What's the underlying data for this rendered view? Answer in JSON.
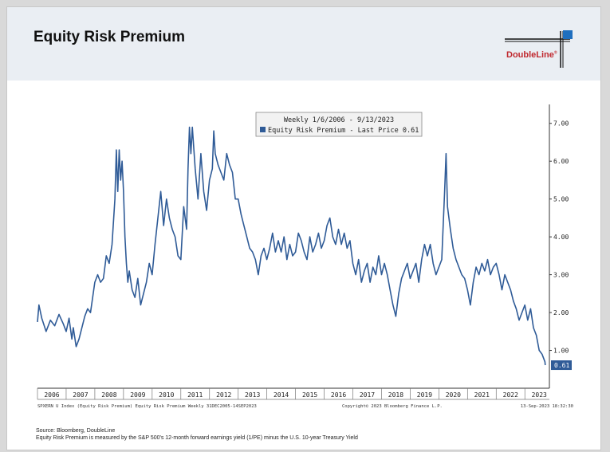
{
  "header": {
    "title": "Equity Risk Premium",
    "logo_text": "DoubleLine",
    "logo_mark": "®"
  },
  "colors": {
    "line": "#2f5b97",
    "brand_red": "#c0272d",
    "header_bg": "#eaeef3"
  },
  "chart_data": {
    "type": "line",
    "legend_line1": "Weekly 1/6/2006 - 9/13/2023",
    "legend_line2": "Equity Risk Premium - Last Price 0.61",
    "last_price_label": "0.61",
    "ylim": [
      0,
      7.5
    ],
    "y_ticks": [
      "1.00",
      "2.00",
      "3.00",
      "4.00",
      "5.00",
      "6.00",
      "7.00"
    ],
    "x_ticks": [
      "2006",
      "2007",
      "2008",
      "2009",
      "2010",
      "2011",
      "2012",
      "2013",
      "2014",
      "2015",
      "2016",
      "2017",
      "2018",
      "2019",
      "2020",
      "2021",
      "2022",
      "2023"
    ],
    "source_left": "SPXERN U Index (Equity Risk Premium) Equity Risk Premium  Weekly 31DEC2005-14SEP2023",
    "source_mid": "Copyright© 2023 Bloomberg Finance L.P.",
    "source_right": "13-Sep-2023 18:32:30",
    "series": [
      {
        "name": "Equity Risk Premium",
        "points": [
          [
            2006.0,
            1.75
          ],
          [
            2006.05,
            2.2
          ],
          [
            2006.15,
            1.85
          ],
          [
            2006.3,
            1.5
          ],
          [
            2006.45,
            1.8
          ],
          [
            2006.6,
            1.65
          ],
          [
            2006.75,
            1.95
          ],
          [
            2006.9,
            1.7
          ],
          [
            2007.0,
            1.5
          ],
          [
            2007.1,
            1.85
          ],
          [
            2007.2,
            1.3
          ],
          [
            2007.25,
            1.6
          ],
          [
            2007.35,
            1.1
          ],
          [
            2007.45,
            1.3
          ],
          [
            2007.55,
            1.6
          ],
          [
            2007.65,
            1.9
          ],
          [
            2007.75,
            2.1
          ],
          [
            2007.85,
            2.0
          ],
          [
            2008.0,
            2.8
          ],
          [
            2008.1,
            3.0
          ],
          [
            2008.2,
            2.8
          ],
          [
            2008.3,
            2.9
          ],
          [
            2008.4,
            3.5
          ],
          [
            2008.5,
            3.3
          ],
          [
            2008.6,
            3.8
          ],
          [
            2008.7,
            5.0
          ],
          [
            2008.75,
            6.3
          ],
          [
            2008.8,
            5.2
          ],
          [
            2008.85,
            6.3
          ],
          [
            2008.9,
            5.5
          ],
          [
            2008.95,
            6.0
          ],
          [
            2009.0,
            5.2
          ],
          [
            2009.05,
            4.0
          ],
          [
            2009.1,
            3.3
          ],
          [
            2009.15,
            2.8
          ],
          [
            2009.2,
            3.1
          ],
          [
            2009.3,
            2.6
          ],
          [
            2009.4,
            2.4
          ],
          [
            2009.5,
            2.9
          ],
          [
            2009.6,
            2.2
          ],
          [
            2009.7,
            2.5
          ],
          [
            2009.8,
            2.8
          ],
          [
            2009.9,
            3.3
          ],
          [
            2010.0,
            3.0
          ],
          [
            2010.1,
            3.8
          ],
          [
            2010.2,
            4.5
          ],
          [
            2010.3,
            5.2
          ],
          [
            2010.4,
            4.3
          ],
          [
            2010.5,
            5.0
          ],
          [
            2010.6,
            4.5
          ],
          [
            2010.7,
            4.2
          ],
          [
            2010.8,
            4.0
          ],
          [
            2010.9,
            3.5
          ],
          [
            2011.0,
            3.4
          ],
          [
            2011.1,
            4.8
          ],
          [
            2011.2,
            4.2
          ],
          [
            2011.25,
            5.8
          ],
          [
            2011.3,
            6.9
          ],
          [
            2011.35,
            6.2
          ],
          [
            2011.4,
            6.9
          ],
          [
            2011.5,
            5.8
          ],
          [
            2011.6,
            5.0
          ],
          [
            2011.7,
            6.2
          ],
          [
            2011.8,
            5.2
          ],
          [
            2011.9,
            4.7
          ],
          [
            2012.0,
            5.5
          ],
          [
            2012.1,
            5.8
          ],
          [
            2012.15,
            6.8
          ],
          [
            2012.2,
            6.2
          ],
          [
            2012.3,
            5.9
          ],
          [
            2012.4,
            5.7
          ],
          [
            2012.5,
            5.5
          ],
          [
            2012.6,
            6.2
          ],
          [
            2012.7,
            5.9
          ],
          [
            2012.8,
            5.7
          ],
          [
            2012.9,
            5.0
          ],
          [
            2013.0,
            5.0
          ],
          [
            2013.1,
            4.6
          ],
          [
            2013.2,
            4.3
          ],
          [
            2013.3,
            4.0
          ],
          [
            2013.4,
            3.7
          ],
          [
            2013.5,
            3.6
          ],
          [
            2013.6,
            3.4
          ],
          [
            2013.7,
            3.0
          ],
          [
            2013.8,
            3.5
          ],
          [
            2013.9,
            3.7
          ],
          [
            2014.0,
            3.4
          ],
          [
            2014.1,
            3.7
          ],
          [
            2014.2,
            4.1
          ],
          [
            2014.3,
            3.6
          ],
          [
            2014.4,
            3.9
          ],
          [
            2014.5,
            3.6
          ],
          [
            2014.6,
            4.0
          ],
          [
            2014.7,
            3.4
          ],
          [
            2014.8,
            3.8
          ],
          [
            2014.9,
            3.5
          ],
          [
            2015.0,
            3.6
          ],
          [
            2015.1,
            4.1
          ],
          [
            2015.2,
            3.9
          ],
          [
            2015.3,
            3.6
          ],
          [
            2015.4,
            3.4
          ],
          [
            2015.5,
            4.0
          ],
          [
            2015.6,
            3.6
          ],
          [
            2015.7,
            3.8
          ],
          [
            2015.8,
            4.1
          ],
          [
            2015.9,
            3.7
          ],
          [
            2016.0,
            3.9
          ],
          [
            2016.1,
            4.3
          ],
          [
            2016.2,
            4.5
          ],
          [
            2016.3,
            4.0
          ],
          [
            2016.4,
            3.8
          ],
          [
            2016.5,
            4.2
          ],
          [
            2016.6,
            3.8
          ],
          [
            2016.7,
            4.1
          ],
          [
            2016.8,
            3.7
          ],
          [
            2016.9,
            3.9
          ],
          [
            2017.0,
            3.3
          ],
          [
            2017.1,
            3.0
          ],
          [
            2017.2,
            3.4
          ],
          [
            2017.3,
            2.8
          ],
          [
            2017.4,
            3.1
          ],
          [
            2017.5,
            3.3
          ],
          [
            2017.6,
            2.8
          ],
          [
            2017.7,
            3.2
          ],
          [
            2017.8,
            3.0
          ],
          [
            2017.9,
            3.5
          ],
          [
            2018.0,
            3.0
          ],
          [
            2018.1,
            3.3
          ],
          [
            2018.2,
            3.0
          ],
          [
            2018.3,
            2.6
          ],
          [
            2018.4,
            2.2
          ],
          [
            2018.5,
            1.9
          ],
          [
            2018.6,
            2.5
          ],
          [
            2018.7,
            2.9
          ],
          [
            2018.8,
            3.1
          ],
          [
            2018.9,
            3.3
          ],
          [
            2019.0,
            2.9
          ],
          [
            2019.1,
            3.1
          ],
          [
            2019.2,
            3.3
          ],
          [
            2019.3,
            2.8
          ],
          [
            2019.4,
            3.4
          ],
          [
            2019.5,
            3.8
          ],
          [
            2019.6,
            3.5
          ],
          [
            2019.7,
            3.8
          ],
          [
            2019.8,
            3.3
          ],
          [
            2019.9,
            3.0
          ],
          [
            2020.0,
            3.2
          ],
          [
            2020.1,
            3.4
          ],
          [
            2020.15,
            4.3
          ],
          [
            2020.2,
            5.2
          ],
          [
            2020.25,
            6.2
          ],
          [
            2020.3,
            4.8
          ],
          [
            2020.4,
            4.2
          ],
          [
            2020.5,
            3.7
          ],
          [
            2020.6,
            3.4
          ],
          [
            2020.7,
            3.2
          ],
          [
            2020.8,
            3.0
          ],
          [
            2020.9,
            2.9
          ],
          [
            2021.0,
            2.6
          ],
          [
            2021.1,
            2.2
          ],
          [
            2021.2,
            2.8
          ],
          [
            2021.3,
            3.2
          ],
          [
            2021.4,
            3.0
          ],
          [
            2021.5,
            3.3
          ],
          [
            2021.6,
            3.1
          ],
          [
            2021.7,
            3.4
          ],
          [
            2021.8,
            3.0
          ],
          [
            2021.9,
            3.2
          ],
          [
            2022.0,
            3.3
          ],
          [
            2022.1,
            3.0
          ],
          [
            2022.2,
            2.6
          ],
          [
            2022.3,
            3.0
          ],
          [
            2022.4,
            2.8
          ],
          [
            2022.5,
            2.6
          ],
          [
            2022.6,
            2.3
          ],
          [
            2022.7,
            2.1
          ],
          [
            2022.8,
            1.8
          ],
          [
            2022.9,
            2.0
          ],
          [
            2023.0,
            2.2
          ],
          [
            2023.1,
            1.8
          ],
          [
            2023.2,
            2.1
          ],
          [
            2023.3,
            1.6
          ],
          [
            2023.4,
            1.4
          ],
          [
            2023.5,
            1.0
          ],
          [
            2023.6,
            0.9
          ],
          [
            2023.7,
            0.7
          ],
          [
            2023.71,
            0.61
          ]
        ]
      }
    ]
  },
  "footer": {
    "source": "Source: Bloomberg, DoubleLine",
    "note": "Equity Risk Premium is measured by the S&P 500's 12-month forward earnings yield (1/PE) minus the U.S. 10-year Treasury Yield"
  }
}
